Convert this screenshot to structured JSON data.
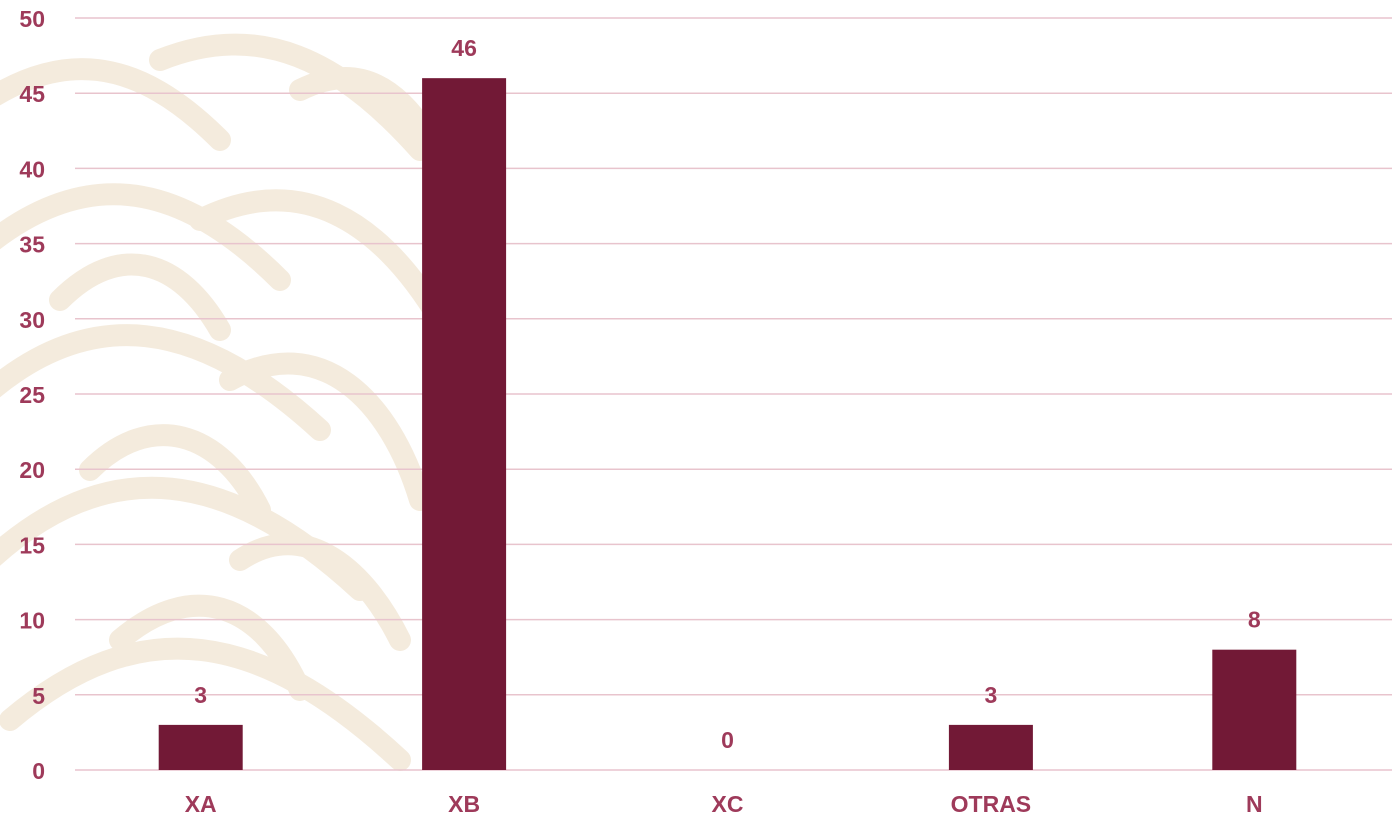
{
  "colors": {
    "bar": "#721936",
    "labels": "#9E3A5A",
    "grid": "#E8C4CD",
    "watermark": "#F4EBDD"
  },
  "chart_data": {
    "type": "bar",
    "title": "",
    "xlabel": "",
    "ylabel": "",
    "categories": [
      "XA",
      "XB",
      "XC",
      "OTRAS",
      "N"
    ],
    "values": [
      3,
      46,
      0,
      3,
      8
    ],
    "data_labels": [
      "3",
      "46",
      "0",
      "3",
      "8"
    ],
    "ylim": [
      0,
      50
    ],
    "yticks": [
      0,
      5,
      10,
      15,
      20,
      25,
      30,
      35,
      40,
      45,
      50
    ],
    "grid": true,
    "legend": "none"
  }
}
